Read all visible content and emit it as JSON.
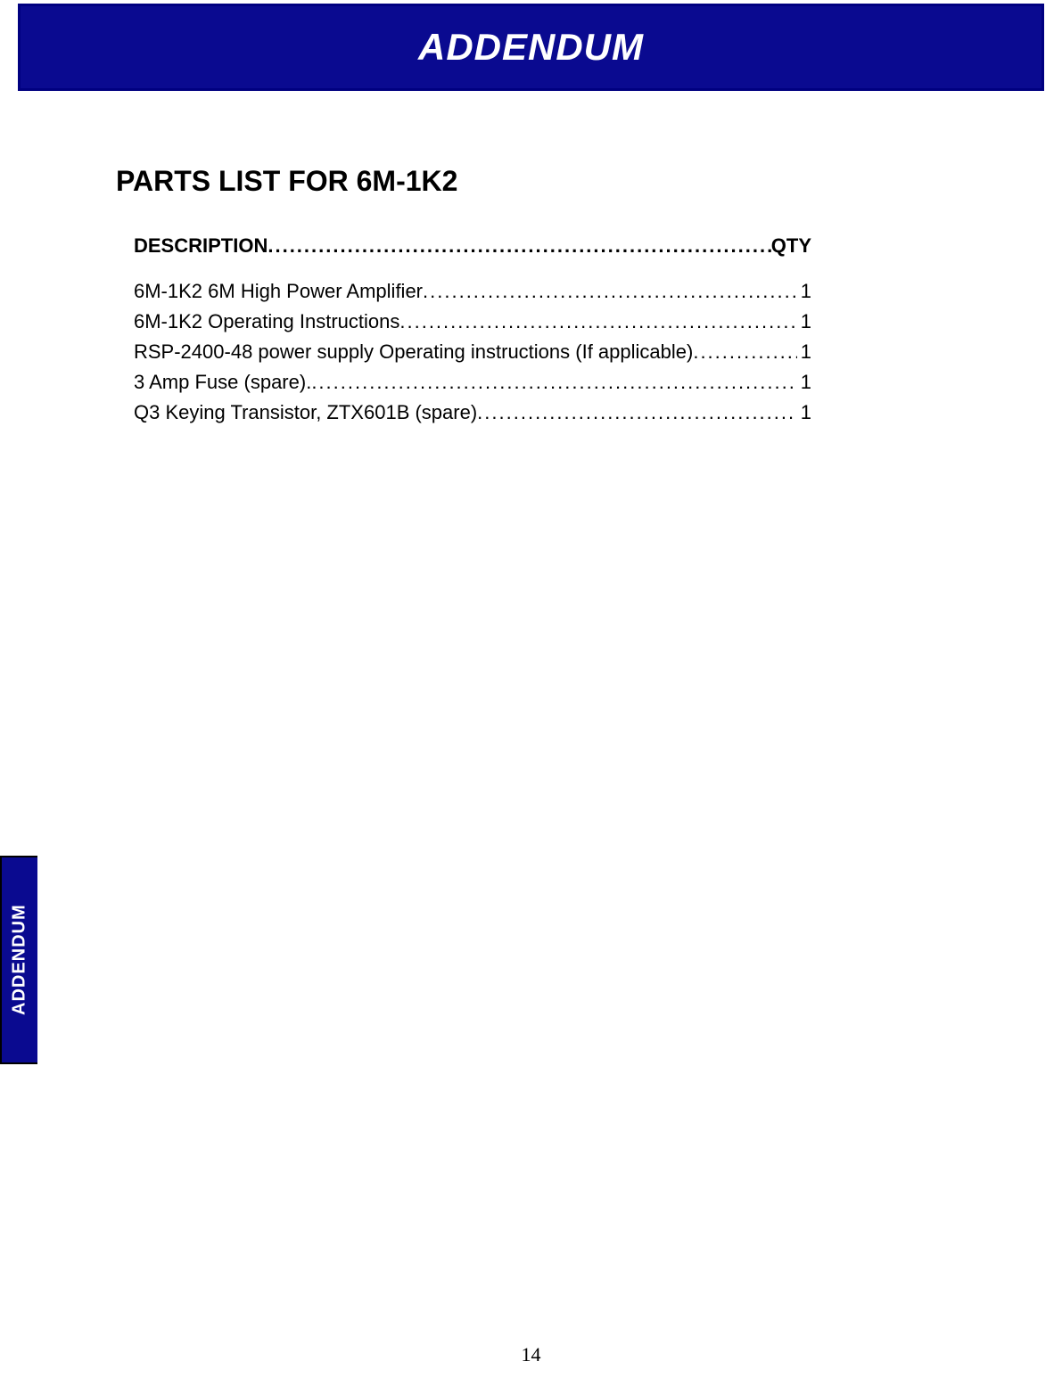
{
  "colors": {
    "banner_bg": "#0a0a90",
    "banner_border": "#000080",
    "banner_text": "#ffffff",
    "page_bg": "#ffffff",
    "body_text": "#000000",
    "tab_bg": "#0a0a90",
    "tab_border": "#000000",
    "tab_text": "#ffffff"
  },
  "typography": {
    "banner_fontsize": 42,
    "banner_weight": "bold",
    "banner_style": "italic",
    "section_fontsize": 32,
    "section_weight": "bold",
    "header_fontsize": 22,
    "header_weight": "bold",
    "body_fontsize": 22,
    "body_family": "Tahoma, Verdana, sans-serif",
    "pagenum_fontsize": 22,
    "pagenum_family": "Times New Roman"
  },
  "header": {
    "title": "ADDENDUM"
  },
  "section": {
    "title": "PARTS LIST FOR 6M-1K2",
    "desc_label": "DESCRIPTION",
    "qty_label": "QTY"
  },
  "parts": [
    {
      "description": "6M-1K2 6M High Power Amplifier ",
      "qty": "1"
    },
    {
      "description": "6M-1K2 Operating Instructions",
      "qty": "1"
    },
    {
      "description": "RSP-2400-48 power supply Operating instructions (If applicable)",
      "qty": "1"
    },
    {
      "description": "3 Amp Fuse (spare). ",
      "qty": "1"
    },
    {
      "description": "Q3 Keying Transistor, ZTX601B (spare) ",
      "qty": "1"
    }
  ],
  "side_tab": {
    "label": "ADDENDUM"
  },
  "page_number": "14",
  "dot_leader": "........................................................................................................................"
}
